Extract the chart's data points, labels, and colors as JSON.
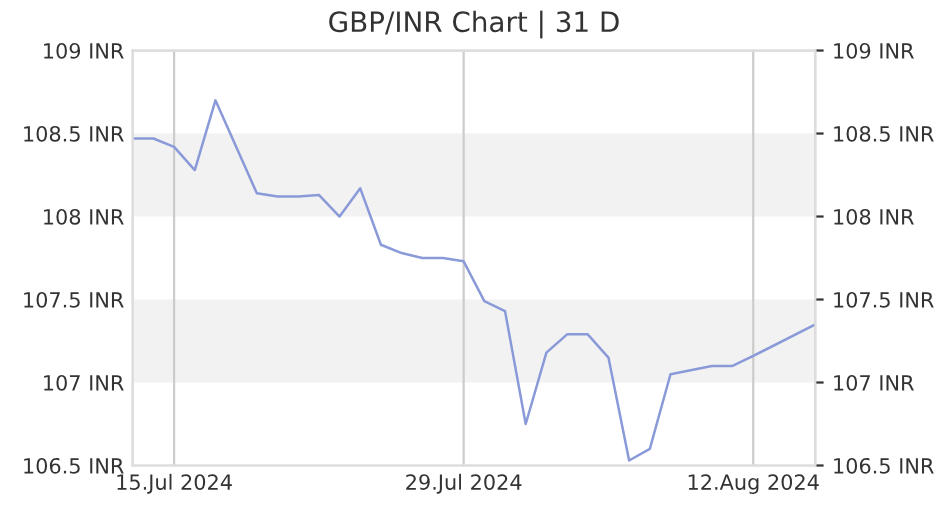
{
  "chart_data": {
    "type": "line",
    "title": "GBP/INR Chart | 31 D",
    "x": [
      "2024-07-13",
      "2024-07-14",
      "2024-07-15",
      "2024-07-16",
      "2024-07-17",
      "2024-07-19",
      "2024-07-20",
      "2024-07-21",
      "2024-07-22",
      "2024-07-23",
      "2024-07-24",
      "2024-07-25",
      "2024-07-26",
      "2024-07-27",
      "2024-07-28",
      "2024-07-29",
      "2024-07-30",
      "2024-07-31",
      "2024-08-01",
      "2024-08-02",
      "2024-08-03",
      "2024-08-04",
      "2024-08-05",
      "2024-08-06",
      "2024-08-07",
      "2024-08-08",
      "2024-08-10",
      "2024-08-11",
      "2024-08-12",
      "2024-08-15"
    ],
    "series": [
      {
        "color": "#8a9ad8",
        "values": [
          108.47,
          108.47,
          108.42,
          108.28,
          108.7,
          108.14,
          108.12,
          108.12,
          108.13,
          108.0,
          108.17,
          107.83,
          107.78,
          107.75,
          107.75,
          107.73,
          107.49,
          107.43,
          106.75,
          107.18,
          107.29,
          107.29,
          107.15,
          106.53,
          106.6,
          107.05,
          107.1,
          107.1,
          107.16,
          107.35
        ]
      }
    ],
    "xlim": [
      "2024-07-13",
      "2024-08-15"
    ],
    "xticks": [
      {
        "value": "2024-07-15",
        "label": "15.Jul 2024"
      },
      {
        "value": "2024-07-29",
        "label": "29.Jul 2024"
      },
      {
        "value": "2024-08-12",
        "label": "12.Aug 2024"
      }
    ],
    "ylim": [
      106.5,
      109
    ],
    "yticks": [
      {
        "value": 106.5,
        "label": "106.5 INR"
      },
      {
        "value": 107,
        "label": "107 INR"
      },
      {
        "value": 107.5,
        "label": "107.5 INR"
      },
      {
        "value": 108,
        "label": "108 INR"
      },
      {
        "value": 108.5,
        "label": "108.5 INR"
      },
      {
        "value": 109,
        "label": "109 INR"
      }
    ],
    "y2lim": [
      106.5,
      109
    ],
    "y2ticks": [
      {
        "value": 106.5,
        "label": "106.5 INR"
      },
      {
        "value": 107,
        "label": "107 INR"
      },
      {
        "value": 107.5,
        "label": "107.5 INR"
      },
      {
        "value": 108,
        "label": "108 INR"
      },
      {
        "value": 108.5,
        "label": "108.5 INR"
      },
      {
        "value": 109,
        "label": "109 INR"
      }
    ],
    "bands": [
      {
        "axis": "y",
        "from": 107,
        "to": 107.5,
        "color": "#f2f2f2"
      },
      {
        "axis": "y",
        "from": 108,
        "to": 108.5,
        "color": "#f2f2f2"
      }
    ],
    "grid": "x",
    "marker": "none",
    "line_style": "solid"
  }
}
